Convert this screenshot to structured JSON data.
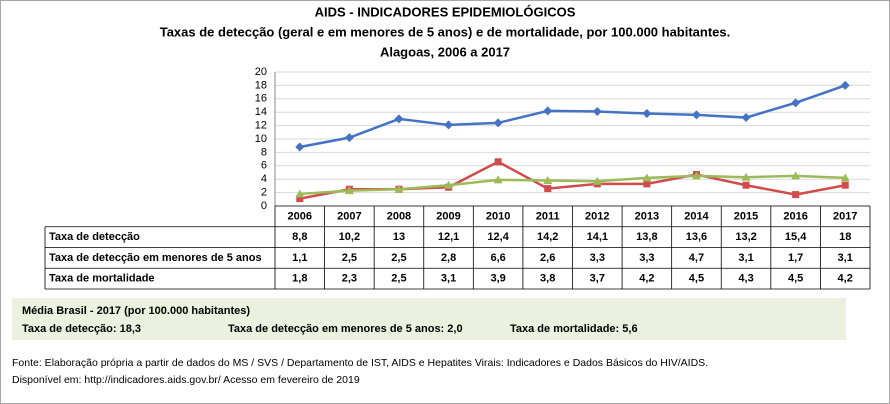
{
  "chart_data": {
    "type": "line",
    "title": "AIDS - INDICADORES EPIDEMIOLÓGICOS",
    "subtitle": "Taxas de detecção (geral e em menores de 5 anos) e de mortalidade, por 100.000 habitantes.",
    "period": "Alagoas, 2006 a 2017",
    "categories": [
      "2006",
      "2007",
      "2008",
      "2009",
      "2010",
      "2011",
      "2012",
      "2013",
      "2014",
      "2015",
      "2016",
      "2017"
    ],
    "series": [
      {
        "name": "Taxa de detecção",
        "color": "#4472c4",
        "marker": "diamond",
        "values": [
          8.8,
          10.2,
          13,
          12.1,
          12.4,
          14.2,
          14.1,
          13.8,
          13.6,
          13.2,
          15.4,
          18
        ],
        "value_labels": [
          "8,8",
          "10,2",
          "13",
          "12,1",
          "12,4",
          "14,2",
          "14,1",
          "13,8",
          "13,6",
          "13,2",
          "15,4",
          "18"
        ]
      },
      {
        "name": "Taxa de detecção em menores de 5 anos",
        "color": "#d24b4b",
        "marker": "square",
        "values": [
          1.1,
          2.5,
          2.5,
          2.8,
          6.6,
          2.6,
          3.3,
          3.3,
          4.7,
          3.1,
          1.7,
          3.1
        ],
        "value_labels": [
          "1,1",
          "2,5",
          "2,5",
          "2,8",
          "6,6",
          "2,6",
          "3,3",
          "3,3",
          "4,7",
          "3,1",
          "1,7",
          "3,1"
        ]
      },
      {
        "name": "Taxa de mortalidade",
        "color": "#9bbb59",
        "marker": "triangle",
        "values": [
          1.8,
          2.3,
          2.5,
          3.1,
          3.9,
          3.8,
          3.7,
          4.2,
          4.5,
          4.3,
          4.5,
          4.2
        ],
        "value_labels": [
          "1,8",
          "2,3",
          "2,5",
          "3,1",
          "3,9",
          "3,8",
          "3,7",
          "4,2",
          "4,5",
          "4,3",
          "4,5",
          "4,2"
        ]
      }
    ],
    "ylim": [
      0,
      20
    ],
    "yticks": [
      0,
      2,
      4,
      6,
      8,
      10,
      12,
      14,
      16,
      18,
      20
    ],
    "grid": true
  },
  "summary": {
    "title": "Média Brasil - 2017 (por 100.000 habitantes)",
    "items": [
      "Taxa de detecção: 18,3",
      "Taxa de detecção em menores de 5 anos: 2,0",
      "Taxa de mortalidade: 5,6"
    ]
  },
  "source": [
    "Fonte: Elaboração própria a partir de dados do MS / SVS / Departamento de IST, AIDS e Hepatites Virais: Indicadores e Dados Básicos do HIV/AIDS.",
    "Disponível em: http://indicadores.aids.gov.br/   Acesso em fevereiro de 2019"
  ]
}
